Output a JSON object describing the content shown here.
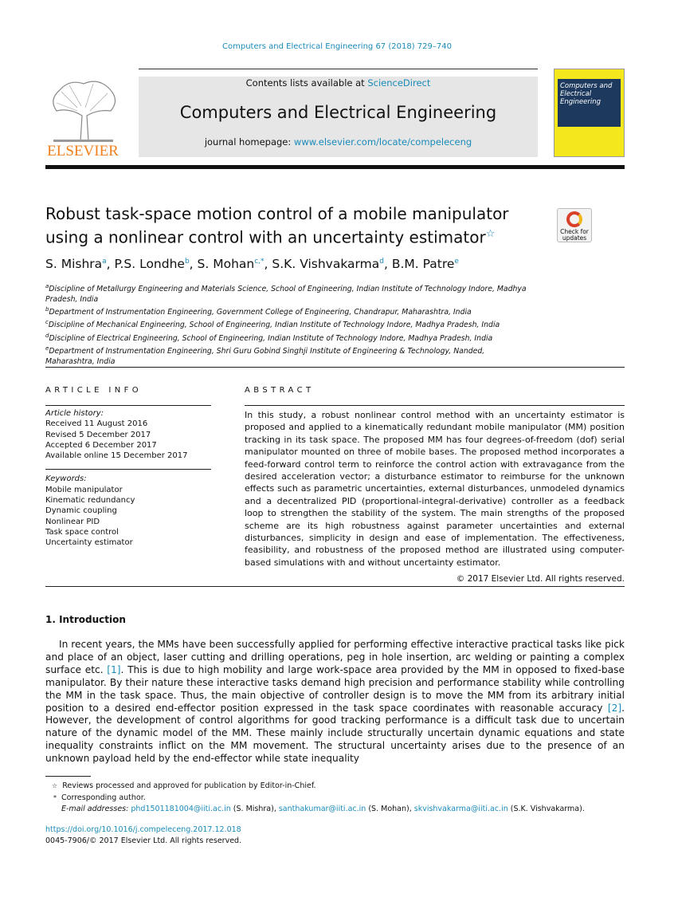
{
  "journal_ref": "Computers and Electrical Engineering 67 (2018) 729–740",
  "header": {
    "contents_prefix": "Contents lists available at ",
    "contents_link": "ScienceDirect",
    "journal_name": "Computers and Electrical Engineering",
    "homepage_prefix": "journal homepage: ",
    "homepage_link": "www.elsevier.com/locate/compeleceng",
    "publisher": "ELSEVIER",
    "cover_title": "Computers and Electrical Engineering",
    "check_updates": "Check for updates"
  },
  "title": "Robust task-space motion control of a mobile manipulator using a nonlinear control with an uncertainty estimator",
  "title_mark": "☆",
  "authors": [
    {
      "name": "S. Mishra",
      "sup": "a"
    },
    {
      "name": "P.S. Londhe",
      "sup": "b"
    },
    {
      "name": "S. Mohan",
      "sup": "c,*"
    },
    {
      "name": "S.K. Vishvakarma",
      "sup": "d"
    },
    {
      "name": "B.M. Patre",
      "sup": "e"
    }
  ],
  "affiliations": [
    {
      "sup": "a",
      "text": "Discipline of Metallurgy Engineering and Materials Science, School of Engineering, Indian Institute of Technology Indore, Madhya Pradesh, India"
    },
    {
      "sup": "b",
      "text": "Department of Instrumentation Engineering, Government College of Engineering, Chandrapur, Maharashtra, India"
    },
    {
      "sup": "c",
      "text": "Discipline of Mechanical Engineering, School of Engineering, Indian Institute of Technology Indore, Madhya Pradesh, India"
    },
    {
      "sup": "d",
      "text": "Discipline of Electrical Engineering, School of Engineering, Indian Institute of Technology Indore, Madhya Pradesh, India"
    },
    {
      "sup": "e",
      "text": "Department of Instrumentation Engineering, Shri Guru Gobind Singhji Institute of Engineering & Technology, Nanded, Maharashtra, India"
    }
  ],
  "article_info": {
    "heading": "ARTICLE INFO",
    "history_label": "Article history:",
    "history": [
      "Received 11 August 2016",
      "Revised 5 December 2017",
      "Accepted 6 December 2017",
      "Available online 15 December 2017"
    ],
    "keywords_label": "Keywords:",
    "keywords": [
      "Mobile manipulator",
      "Kinematic redundancy",
      "Dynamic coupling",
      "Nonlinear PID",
      "Task space control",
      "Uncertainty estimator"
    ]
  },
  "abstract": {
    "heading": "ABSTRACT",
    "text": "In this study, a robust nonlinear control method with an uncertainty estimator is proposed and applied to a kinematically redundant mobile manipulator (MM) position tracking in its task space. The proposed MM has four degrees-of-freedom (dof) serial manipulator mounted on three of mobile bases. The proposed method incorporates a feed-forward control term to reinforce the control action with extravagance from the desired acceleration vector; a disturbance estimator to reimburse for the unknown effects such as parametric uncertainties, external disturbances, unmodeled dynamics and a decentralized PID (proportional-integral-derivative) controller as a feedback loop to strengthen the stability of the system. The main strengths of the proposed scheme are its high robustness against parameter uncertainties and external disturbances, simplicity in design and ease of implementation. The effectiveness, feasibility, and robustness of the proposed method are illustrated using computer-based simulations with and without uncertainty estimator.",
    "copyright": "© 2017 Elsevier Ltd. All rights reserved."
  },
  "intro": {
    "heading": "1.  Introduction",
    "p1": "In recent years, the MMs have been successfully applied for performing effective interactive practical tasks like pick and place of an object, laser cutting and drilling operations, peg in hole insertion, arc welding or painting a complex surface etc. ",
    "ref1": "[1]",
    "p2": ". This is due to high mobility and large work-space area provided by the MM in opposed to fixed-base manipulator. By their nature these interactive tasks demand high precision and performance stability while controlling the MM in the task space. Thus, the main objective of controller design is to move the MM from its arbitrary initial position to a desired end-effector position expressed in the task space coordinates with reasonable accuracy ",
    "ref2": "[2]",
    "p3": ". However, the development of control algorithms for good tracking performance is a difficult task due to uncertain nature of the dynamic model of the MM. These mainly include structurally uncertain dynamic equations and state inequality constraints inflict on the MM movement. The structural uncertainty arises due to the presence of an unknown payload held by the end-effector while state inequality"
  },
  "footnotes": {
    "star": "☆",
    "review": "Reviews processed and approved for publication by Editor-in-Chief.",
    "asterisk": "*",
    "corresponding": "Corresponding author.",
    "email_label": "E-mail addresses: ",
    "emails": [
      {
        "addr": "phd1501181004@iiti.ac.in",
        "who": " (S. Mishra), "
      },
      {
        "addr": "santhakumar@iiti.ac.in",
        "who": " (S. Mohan), "
      },
      {
        "addr": "skvishvakarma@iiti.ac.in",
        "who": " (S.K. Vishvakarma)."
      }
    ]
  },
  "doi": "https://doi.org/10.1016/j.compeleceng.2017.12.018",
  "issn": "0045-7906/© 2017 Elsevier Ltd. All rights reserved."
}
